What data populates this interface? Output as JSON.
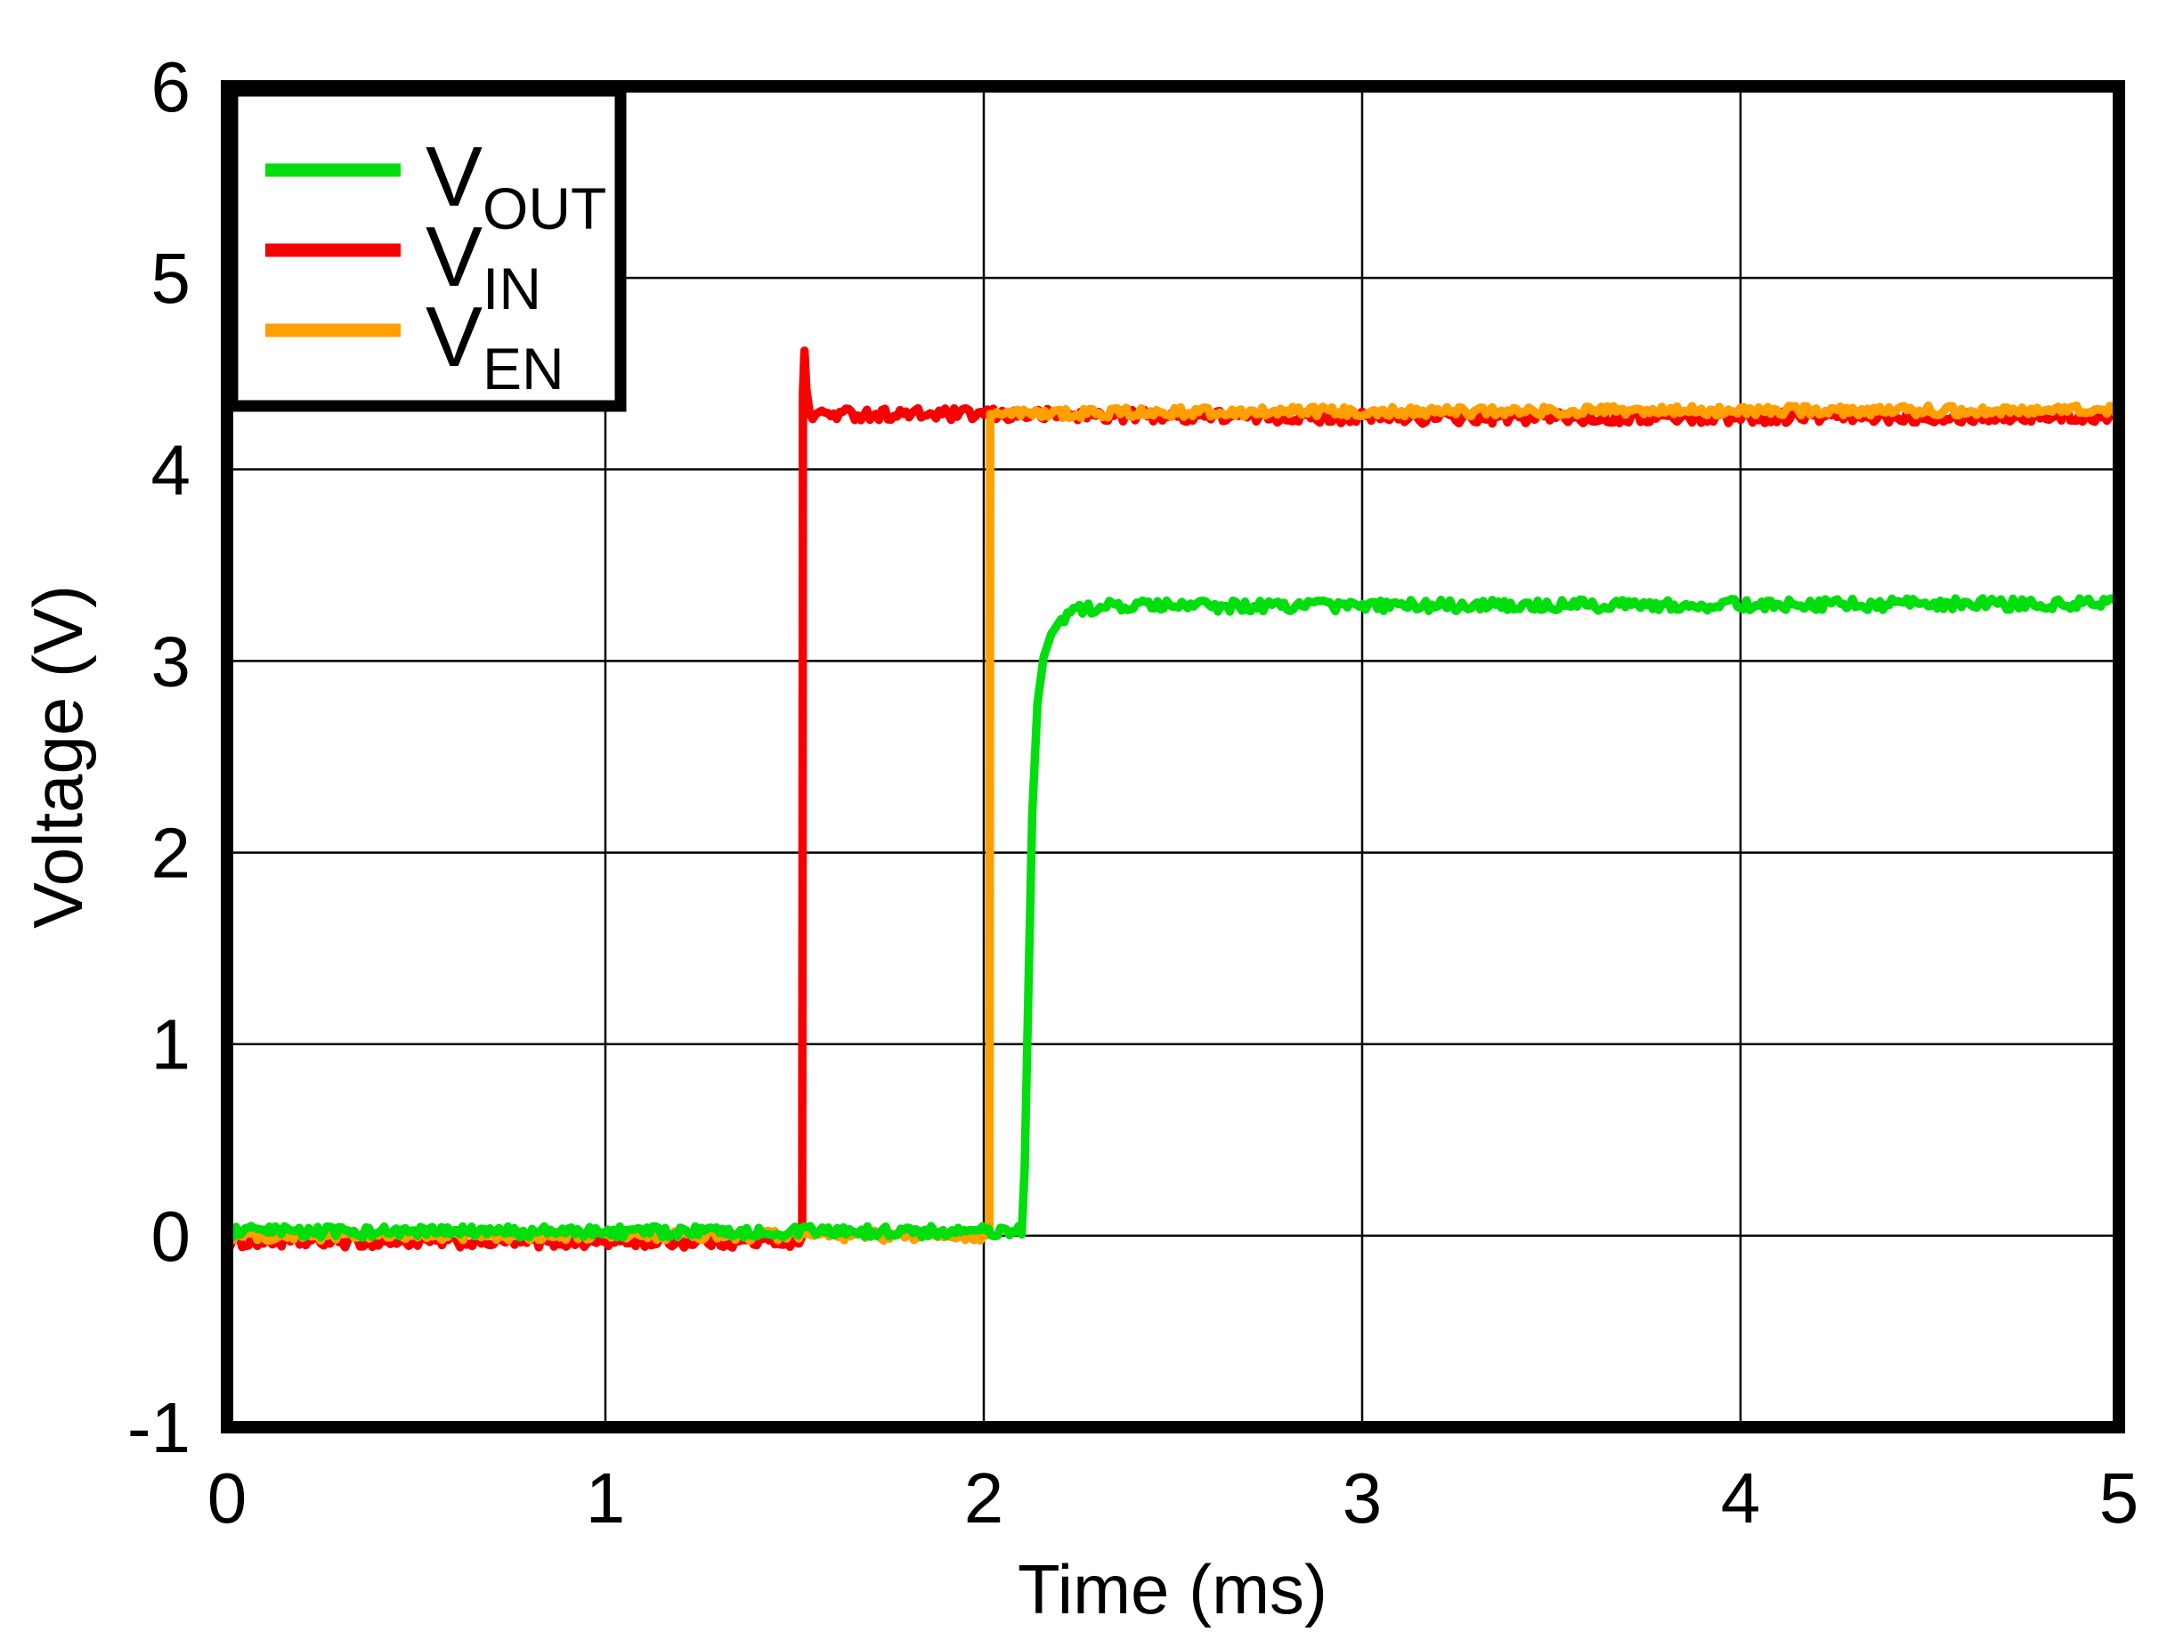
{
  "figure": {
    "background": "#ffffff",
    "frame_color": "#000000",
    "grid_color": "#000000"
  },
  "chart_data": {
    "type": "line",
    "title": "",
    "xlabel": "Time (ms)",
    "ylabel": "Voltage (V)",
    "xlim": [
      0,
      5
    ],
    "ylim": [
      -1,
      6
    ],
    "xticks": [
      0,
      1,
      2,
      3,
      4,
      5
    ],
    "yticks": [
      6,
      5,
      4,
      3,
      2,
      1,
      0,
      -1
    ],
    "grid": true,
    "legend_position": "top-left",
    "noise_step_ms": 0.008,
    "series": [
      {
        "id": "VOUT",
        "label": {
          "main": "V",
          "sub": "OUT"
        },
        "color": "#00DE0E",
        "noise_v": 0.03,
        "points": [
          [
            0,
            0.02
          ],
          [
            2.1,
            0.02
          ],
          [
            2.108,
            0.35
          ],
          [
            2.118,
            1.3
          ],
          [
            2.128,
            2.2
          ],
          [
            2.142,
            2.78
          ],
          [
            2.158,
            3.02
          ],
          [
            2.178,
            3.14
          ],
          [
            2.205,
            3.22
          ],
          [
            2.245,
            3.26
          ],
          [
            2.3,
            3.285
          ],
          [
            3.2,
            3.29
          ],
          [
            5,
            3.3
          ]
        ]
      },
      {
        "id": "VIN",
        "label": {
          "main": "V",
          "sub": "IN"
        },
        "color": "#F80000",
        "noise_v": 0.032,
        "points": [
          [
            0,
            -0.03
          ],
          [
            1.52,
            -0.03
          ],
          [
            1.522,
            4.4
          ],
          [
            1.526,
            4.62
          ],
          [
            1.531,
            4.42
          ],
          [
            1.54,
            4.29
          ],
          [
            2.2,
            4.285
          ],
          [
            3.2,
            4.27
          ],
          [
            4.2,
            4.275
          ],
          [
            5,
            4.28
          ]
        ]
      },
      {
        "id": "VEN",
        "label": {
          "main": "V",
          "sub": "EN"
        },
        "color": "#FF9F00",
        "noise_v": 0.026,
        "points": [
          [
            0,
            0.0
          ],
          [
            2.015,
            0.0
          ],
          [
            2.017,
            4.29
          ],
          [
            2.6,
            4.3
          ],
          [
            3.8,
            4.305
          ],
          [
            5,
            4.31
          ]
        ]
      }
    ],
    "draw_order": [
      "VIN",
      "VEN",
      "VOUT"
    ]
  }
}
